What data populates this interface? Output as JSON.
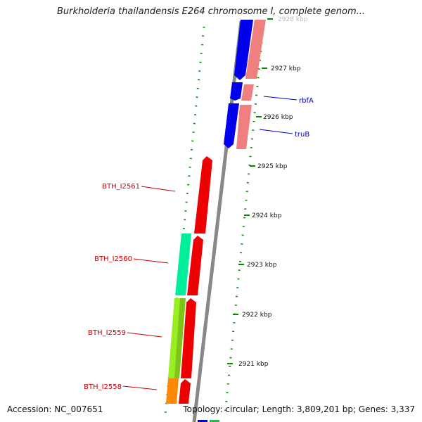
{
  "title": "Burkholderia thailandensis E264 chromosome I, complete genom...",
  "footer": {
    "accession": "Accession: NC_007651",
    "topology": "Topology: circular; Length: 3,809,201 bp; Genes: 3,337"
  },
  "scale_labels": [
    "2928 kbp",
    "2927 kbp",
    "2926 kbp",
    "2925 kbp",
    "2924 kbp",
    "2923 kbp",
    "2922 kbp",
    "2921 kbp"
  ],
  "gene_labels": {
    "forward": [
      {
        "name": "rbfA",
        "color": "#0000cc"
      },
      {
        "name": "truB",
        "color": "#0000cc"
      }
    ],
    "reverse": [
      {
        "name": "BTH_I2561",
        "color": "#cc0000"
      },
      {
        "name": "BTH_I2560",
        "color": "#cc0000"
      },
      {
        "name": "BTH_I2559",
        "color": "#cc0000"
      },
      {
        "name": "BTH_I2558",
        "color": "#cc0000"
      }
    ]
  },
  "colors": {
    "forward_cds": "#0000ee",
    "reverse_cds": "#ee0000",
    "forward_feature": "#f08080",
    "backbone": "#888888",
    "gc_dots": "#008800",
    "feature_teal": "#00ee99",
    "feature_lime": "#99ee22",
    "feature_orange": "#ff8800"
  }
}
